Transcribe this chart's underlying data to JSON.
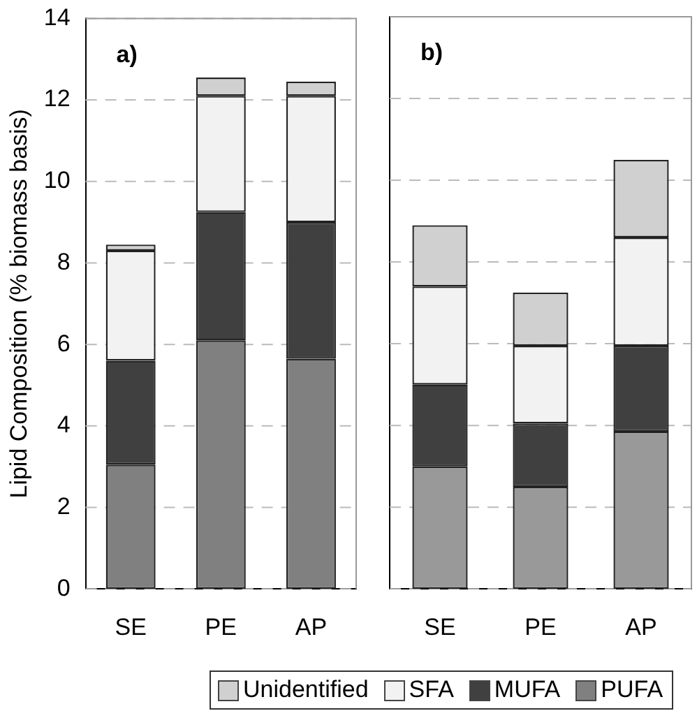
{
  "chart_data": [
    {
      "type": "bar",
      "stacked": true,
      "ylabel": "Lipid Composition (% biomass basis)",
      "annotations": [
        "a)"
      ],
      "categories": [
        "SE",
        "PE",
        "AP"
      ],
      "ylim": [
        0,
        14
      ],
      "yticks": [
        0,
        2,
        4,
        6,
        8,
        10,
        12,
        14
      ],
      "grid": "y",
      "legend": "bottom",
      "series": [
        {
          "name": "PUFA",
          "color": "#808080",
          "values": [
            3.05,
            6.1,
            5.65
          ]
        },
        {
          "name": "MUFA",
          "color": "#404040",
          "values": [
            2.55,
            3.15,
            3.35
          ]
        },
        {
          "name": "SFA",
          "color": "#f2f2f2",
          "values": [
            2.7,
            2.85,
            3.1
          ]
        },
        {
          "name": "Unidentified",
          "color": "#d0d0d0",
          "values": [
            0.15,
            0.45,
            0.35
          ]
        }
      ]
    },
    {
      "type": "bar",
      "stacked": true,
      "annotations": [
        "b)"
      ],
      "categories": [
        "SE",
        "PE",
        "AP"
      ],
      "ylim": [
        0,
        14
      ],
      "yticks": [
        0,
        2,
        4,
        6,
        8,
        10,
        12,
        14
      ],
      "grid": "y",
      "tick_labels": "x",
      "series": [
        {
          "color": "#999999",
          "values": [
            3.0,
            2.5,
            3.85
          ]
        },
        {
          "color": "#404040",
          "values": [
            2.0,
            1.55,
            2.1
          ]
        },
        {
          "color": "#f2f2f2",
          "values": [
            2.4,
            1.9,
            2.65
          ]
        },
        {
          "color": "#d0d0d0",
          "values": [
            1.5,
            1.3,
            1.9
          ]
        }
      ]
    }
  ]
}
